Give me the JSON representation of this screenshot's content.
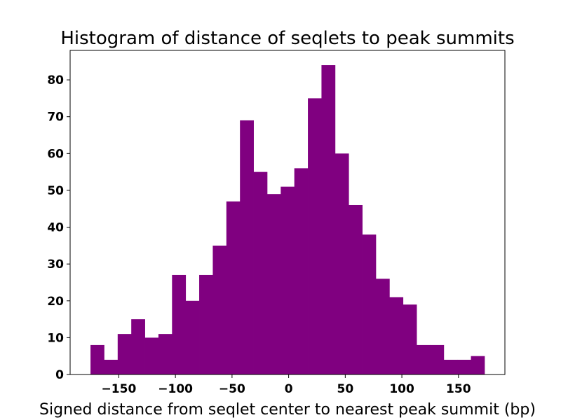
{
  "chart_data": {
    "type": "bar",
    "title": "Histogram of distance of seqlets to peak summits",
    "xlabel": "Signed distance from seqlet center to nearest peak summit (bp)",
    "ylabel": "",
    "bin_edges": [
      -175,
      -163,
      -151,
      -139,
      -127,
      -115,
      -103,
      -91,
      -79,
      -67,
      -55,
      -43,
      -31,
      -19,
      -7,
      5,
      17,
      29,
      41,
      53,
      65,
      77,
      89,
      101,
      113,
      125,
      137,
      149,
      161,
      173
    ],
    "values": [
      8,
      4,
      11,
      15,
      10,
      11,
      27,
      20,
      27,
      35,
      47,
      69,
      55,
      49,
      51,
      56,
      75,
      84,
      60,
      46,
      38,
      26,
      21,
      19,
      8,
      8,
      4,
      4,
      5
    ],
    "xlim": [
      -193,
      191
    ],
    "ylim": [
      0,
      88
    ],
    "xticks": [
      -150,
      -100,
      -50,
      0,
      50,
      100,
      150
    ],
    "xtick_labels": [
      "−150",
      "−100",
      "−50",
      "0",
      "50",
      "100",
      "150"
    ],
    "yticks": [
      0,
      10,
      20,
      30,
      40,
      50,
      60,
      70,
      80
    ],
    "ytick_labels": [
      "0",
      "10",
      "20",
      "30",
      "40",
      "50",
      "60",
      "70",
      "80"
    ],
    "bar_color": "#800080",
    "grid": false
  }
}
